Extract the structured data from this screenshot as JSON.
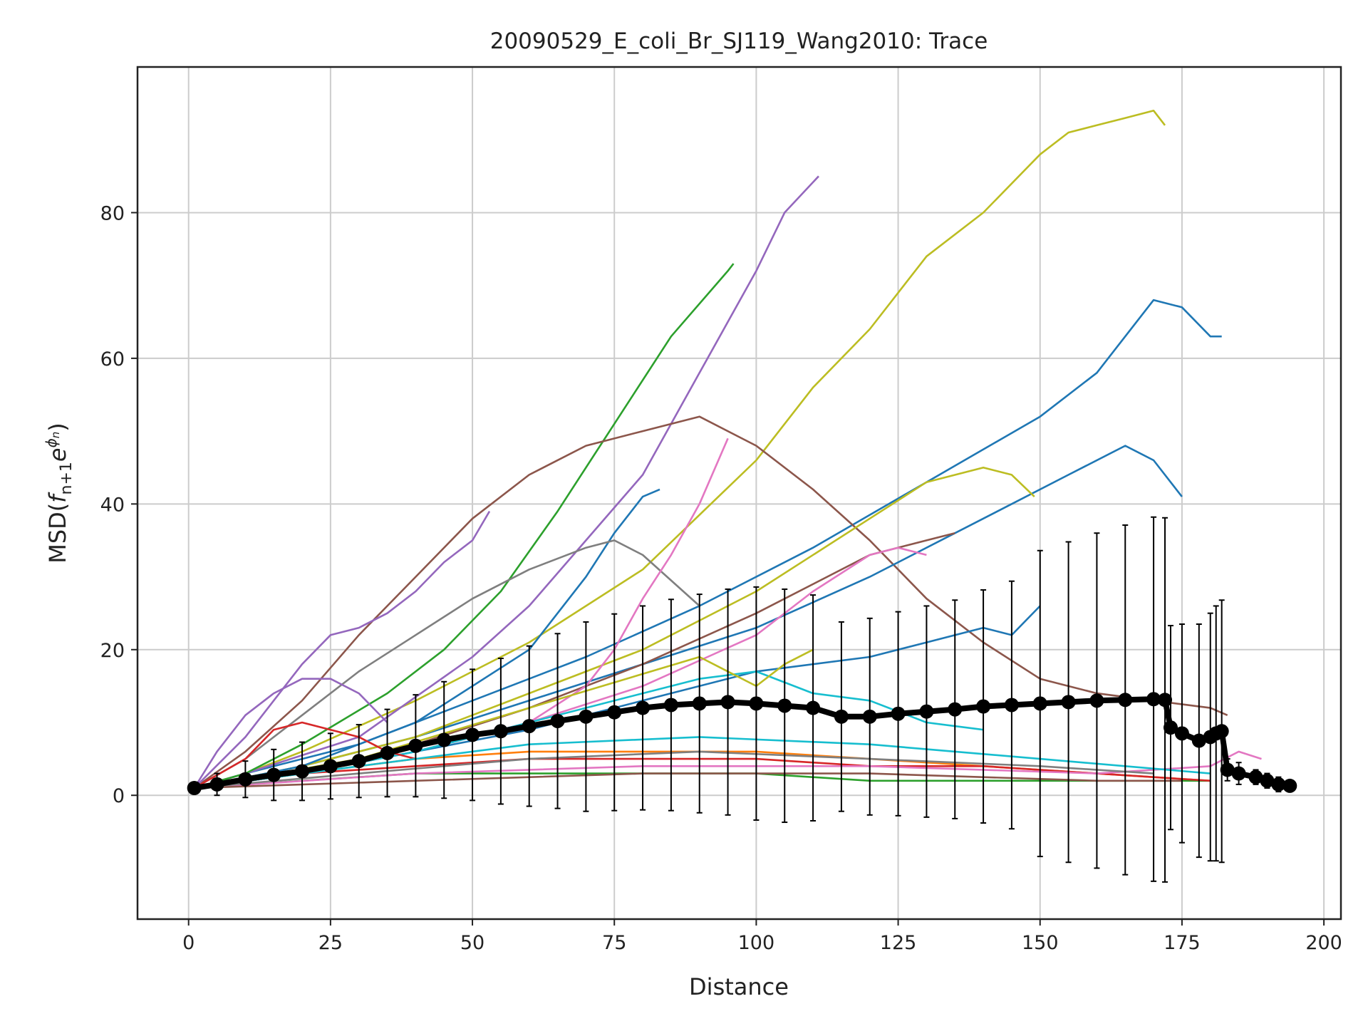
{
  "chart_data": {
    "type": "line",
    "title": "20090529_E_coli_Br_SJ119_Wang2010: Trace",
    "xlabel": "Distance",
    "ylabel_parts": {
      "base": "MSD(",
      "f": "f",
      "sub": "n+1",
      "e": "e",
      "sup_phi": "ϕ",
      "sup_n": "n",
      "close": ")"
    },
    "xlim": [
      -9,
      203
    ],
    "ylim": [
      -17,
      100
    ],
    "xticks": [
      0,
      25,
      50,
      75,
      100,
      125,
      150,
      175,
      200
    ],
    "yticks": [
      0,
      20,
      40,
      60,
      80
    ],
    "grid": true,
    "legend": "none",
    "series": [
      {
        "color": "#bcbd22",
        "x": [
          1,
          10,
          20,
          40,
          60,
          80,
          100,
          110,
          120,
          130,
          140,
          150,
          155,
          160,
          165,
          170,
          172
        ],
        "y": [
          1,
          3,
          6,
          13,
          21,
          31,
          46,
          56,
          64,
          74,
          80,
          88,
          91,
          92,
          93,
          94,
          92
        ]
      },
      {
        "color": "#1f77b4",
        "x": [
          1,
          10,
          30,
          50,
          70,
          90,
          110,
          130,
          150,
          160,
          170,
          175,
          180,
          182
        ],
        "y": [
          1,
          3,
          7,
          13,
          19,
          26,
          34,
          43,
          52,
          58,
          68,
          67,
          63,
          63
        ]
      },
      {
        "color": "#9467bd",
        "x": [
          1,
          10,
          30,
          50,
          60,
          70,
          80,
          90,
          100,
          105,
          111
        ],
        "y": [
          1,
          3,
          8,
          19,
          26,
          35,
          44,
          58,
          72,
          80,
          85
        ]
      },
      {
        "color": "#2ca02c",
        "x": [
          1,
          10,
          20,
          35,
          45,
          55,
          65,
          75,
          85,
          95,
          96
        ],
        "y": [
          1,
          3,
          7,
          14,
          20,
          28,
          39,
          51,
          63,
          72,
          73
        ]
      },
      {
        "color": "#8c564b",
        "x": [
          1,
          10,
          20,
          30,
          40,
          50,
          60,
          70,
          80,
          90,
          100,
          110,
          120,
          130,
          140,
          150,
          160,
          170,
          180,
          183
        ],
        "y": [
          1,
          6,
          13,
          22,
          30,
          38,
          44,
          48,
          50,
          52,
          48,
          42,
          35,
          27,
          21,
          16,
          14,
          13,
          12,
          11
        ]
      },
      {
        "color": "#1f77b4",
        "x": [
          1,
          20,
          40,
          60,
          80,
          100,
          120,
          140,
          155,
          165,
          170,
          175
        ],
        "y": [
          1,
          4,
          8,
          13,
          18,
          23,
          30,
          38,
          44,
          48,
          46,
          41
        ]
      },
      {
        "color": "#bcbd22",
        "x": [
          1,
          20,
          40,
          60,
          80,
          100,
          120,
          130,
          140,
          145,
          149
        ],
        "y": [
          1,
          4,
          8,
          14,
          20,
          28,
          38,
          43,
          45,
          44,
          41
        ]
      },
      {
        "color": "#1f77b4",
        "x": [
          1,
          20,
          40,
          60,
          70,
          75,
          80,
          83
        ],
        "y": [
          1,
          4,
          10,
          20,
          30,
          36,
          41,
          42
        ]
      },
      {
        "color": "#8c564b",
        "x": [
          1,
          20,
          40,
          60,
          80,
          100,
          120,
          130,
          135
        ],
        "y": [
          1,
          3,
          7,
          12,
          18,
          25,
          33,
          35,
          36
        ]
      },
      {
        "color": "#7f7f7f",
        "x": [
          1,
          10,
          20,
          30,
          40,
          50,
          60,
          70,
          75,
          80,
          90
        ],
        "y": [
          1,
          5,
          11,
          17,
          22,
          27,
          31,
          34,
          35,
          33,
          26
        ]
      },
      {
        "color": "#e377c2",
        "x": [
          1,
          20,
          40,
          60,
          70,
          75,
          80,
          85,
          90,
          95
        ],
        "y": [
          1,
          3,
          6,
          10,
          15,
          20,
          27,
          33,
          40,
          49
        ]
      },
      {
        "color": "#9467bd",
        "x": [
          1,
          10,
          20,
          25,
          30,
          35,
          40,
          45,
          50,
          53
        ],
        "y": [
          1,
          8,
          18,
          22,
          23,
          25,
          28,
          32,
          35,
          39
        ]
      },
      {
        "color": "#e377c2",
        "x": [
          1,
          20,
          40,
          60,
          80,
          100,
          110,
          120,
          125,
          130
        ],
        "y": [
          1,
          3,
          6,
          10,
          15,
          22,
          28,
          33,
          34,
          33
        ]
      },
      {
        "color": "#9467bd",
        "x": [
          1,
          5,
          10,
          15,
          20,
          25,
          30,
          35
        ],
        "y": [
          1,
          6,
          11,
          14,
          16,
          16,
          14,
          10
        ]
      },
      {
        "color": "#1f77b4",
        "x": [
          1,
          20,
          40,
          60,
          80,
          100,
          120,
          130,
          140,
          145,
          150
        ],
        "y": [
          1,
          3,
          6,
          9,
          13,
          17,
          19,
          21,
          23,
          22,
          26
        ]
      },
      {
        "color": "#17becf",
        "x": [
          1,
          20,
          40,
          60,
          80,
          90,
          100,
          110,
          120,
          130,
          140
        ],
        "y": [
          1,
          3,
          6,
          10,
          14,
          16,
          17,
          14,
          13,
          10,
          9
        ]
      },
      {
        "color": "#d62728",
        "x": [
          1,
          10,
          15,
          20,
          25,
          30,
          35,
          40
        ],
        "y": [
          1,
          5,
          9,
          10,
          9,
          8,
          6,
          5
        ]
      },
      {
        "color": "#ff7f0e",
        "x": [
          1,
          20,
          40,
          60,
          80,
          100,
          120,
          140,
          160,
          180
        ],
        "y": [
          1,
          3,
          5,
          6,
          6,
          6,
          5,
          4,
          3,
          2
        ]
      },
      {
        "color": "#2ca02c",
        "x": [
          1,
          20,
          40,
          60,
          80,
          100,
          120,
          140,
          160,
          180
        ],
        "y": [
          1,
          2,
          3,
          3,
          3,
          3,
          2,
          2,
          2,
          2
        ]
      },
      {
        "color": "#d62728",
        "x": [
          1,
          20,
          40,
          60,
          80,
          100,
          120,
          140,
          160,
          180
        ],
        "y": [
          1,
          3,
          4,
          5,
          5,
          5,
          4,
          4,
          3,
          2
        ]
      },
      {
        "color": "#e377c2",
        "x": [
          1,
          40,
          80,
          120,
          160,
          180,
          185,
          189
        ],
        "y": [
          1,
          3,
          4,
          4,
          3,
          4,
          6,
          5
        ]
      },
      {
        "color": "#8c564b",
        "x": [
          1,
          40,
          80,
          120,
          160,
          175
        ],
        "y": [
          1,
          2,
          3,
          3,
          2,
          2
        ]
      },
      {
        "color": "#17becf",
        "x": [
          1,
          30,
          60,
          90,
          120,
          150,
          180
        ],
        "y": [
          1,
          4,
          7,
          8,
          7,
          5,
          3
        ]
      },
      {
        "color": "#bcbd22",
        "x": [
          1,
          30,
          60,
          90,
          100,
          105,
          110
        ],
        "y": [
          1,
          5,
          12,
          19,
          15,
          18,
          20
        ]
      },
      {
        "color": "#7f7f7f",
        "x": [
          1,
          30,
          60,
          90,
          120,
          150,
          170
        ],
        "y": [
          1,
          3,
          5,
          6,
          5,
          4,
          3
        ]
      }
    ],
    "mean_series": {
      "color": "#000000",
      "x": [
        1,
        5,
        10,
        15,
        20,
        25,
        30,
        35,
        40,
        45,
        50,
        55,
        60,
        65,
        70,
        75,
        80,
        85,
        90,
        95,
        100,
        105,
        110,
        115,
        120,
        125,
        130,
        135,
        140,
        145,
        150,
        155,
        160,
        165,
        170,
        172,
        173,
        175,
        178,
        180,
        181,
        182,
        183,
        185,
        188,
        190,
        192,
        194
      ],
      "y": [
        1,
        1.5,
        2.2,
        2.8,
        3.3,
        4,
        4.7,
        5.8,
        6.8,
        7.6,
        8.3,
        8.8,
        9.5,
        10.2,
        10.8,
        11.4,
        12,
        12.4,
        12.6,
        12.8,
        12.6,
        12.3,
        12,
        10.8,
        10.8,
        11.2,
        11.5,
        11.8,
        12.2,
        12.4,
        12.6,
        12.8,
        13,
        13.1,
        13.2,
        13.1,
        9.3,
        8.5,
        7.5,
        8,
        8.5,
        8.8,
        3.5,
        3,
        2.5,
        2,
        1.5,
        1.3
      ],
      "err": [
        0.5,
        1.5,
        2.5,
        3.5,
        4,
        4.5,
        5,
        6,
        7,
        8,
        9,
        10,
        11,
        12,
        13,
        13.5,
        14,
        14.5,
        15,
        15.5,
        16,
        16,
        15.5,
        13,
        13.5,
        14,
        14.5,
        15,
        16,
        17,
        21,
        22,
        23,
        24,
        25,
        25,
        14,
        15,
        16,
        17,
        17.5,
        18,
        1.5,
        1.5,
        1,
        1,
        1,
        0.5
      ]
    }
  }
}
